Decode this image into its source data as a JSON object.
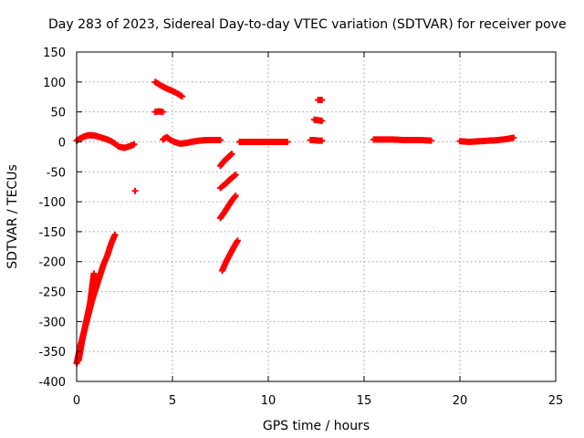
{
  "chart_data": {
    "type": "scatter",
    "title": "Day 283 of 2023, Sidereal Day-to-day VTEC variation (SDTVAR) for receiver pove",
    "xlabel": "GPS time / hours",
    "ylabel": "SDTVAR / TECUs",
    "xlim": [
      0,
      25
    ],
    "ylim": [
      -400,
      150
    ],
    "xticks": [
      0,
      5,
      10,
      15,
      20,
      25
    ],
    "yticks": [
      -400,
      -350,
      -300,
      -250,
      -200,
      -150,
      -100,
      -50,
      0,
      50,
      100,
      150
    ],
    "grid": true,
    "marker": "plus",
    "color": "#ff0000",
    "segments": [
      {
        "x": [
          0.0,
          0.2,
          0.4,
          0.6,
          0.8,
          1.0,
          1.2,
          1.4,
          1.6,
          1.8,
          2.0
        ],
        "y": [
          -370,
          -340,
          -315,
          -290,
          -265,
          -245,
          -225,
          -205,
          -190,
          -170,
          -155
        ]
      },
      {
        "x": [
          0.1,
          0.3,
          0.5,
          0.7,
          0.9
        ],
        "y": [
          -365,
          -330,
          -300,
          -270,
          -220
        ]
      },
      {
        "x": [
          0.0,
          0.2,
          0.4,
          0.6,
          0.8,
          1.0,
          1.2,
          1.4,
          1.6,
          1.8,
          2.0,
          2.2,
          2.5,
          2.8,
          3.0
        ],
        "y": [
          2,
          6,
          9,
          11,
          11,
          10,
          8,
          6,
          4,
          1,
          -3,
          -8,
          -10,
          -7,
          -4
        ]
      },
      {
        "x": [
          3.05
        ],
        "y": [
          -82
        ]
      },
      {
        "x": [
          4.1,
          4.3,
          4.5
        ],
        "y": [
          50,
          51,
          50
        ]
      },
      {
        "x": [
          4.1,
          4.4,
          4.7,
          5.0,
          5.3,
          5.5
        ],
        "y": [
          100,
          94,
          89,
          85,
          80,
          76
        ]
      },
      {
        "x": [
          4.5,
          4.7,
          4.9,
          5.1,
          5.4,
          5.7,
          6.0,
          6.4,
          6.8,
          7.2,
          7.5
        ],
        "y": [
          4,
          8,
          3,
          0,
          -3,
          -2,
          0,
          2,
          3,
          3,
          3
        ]
      },
      {
        "x": [
          7.5,
          7.7,
          7.9,
          8.1
        ],
        "y": [
          -40,
          -32,
          -26,
          -20
        ]
      },
      {
        "x": [
          7.5,
          7.7,
          7.9,
          8.1,
          8.3
        ],
        "y": [
          -77,
          -72,
          -66,
          -60,
          -55
        ]
      },
      {
        "x": [
          7.5,
          7.7,
          7.9,
          8.1,
          8.3
        ],
        "y": [
          -127,
          -118,
          -108,
          -98,
          -90
        ]
      },
      {
        "x": [
          7.6,
          7.8,
          8.0,
          8.2,
          8.4
        ],
        "y": [
          -215,
          -200,
          -188,
          -176,
          -165
        ]
      },
      {
        "x": [
          8.5,
          9.0,
          9.5,
          10.0,
          10.5,
          11.0
        ],
        "y": [
          0,
          0,
          0,
          0,
          0,
          0
        ]
      },
      {
        "x": [
          12.2,
          12.4,
          12.6,
          12.8
        ],
        "y": [
          3,
          3,
          2,
          2
        ]
      },
      {
        "x": [
          12.4,
          12.6,
          12.8
        ],
        "y": [
          37,
          36,
          35
        ]
      },
      {
        "x": [
          12.6,
          12.8
        ],
        "y": [
          70,
          70
        ]
      },
      {
        "x": [
          15.5,
          16.0,
          16.5,
          17.0,
          17.5,
          18.0,
          18.5
        ],
        "y": [
          4,
          4,
          4,
          3,
          3,
          3,
          2
        ]
      },
      {
        "x": [
          20.0,
          20.5,
          21.0,
          21.5,
          22.0,
          22.5,
          22.8
        ],
        "y": [
          1,
          0,
          1,
          2,
          3,
          5,
          7
        ]
      }
    ]
  }
}
